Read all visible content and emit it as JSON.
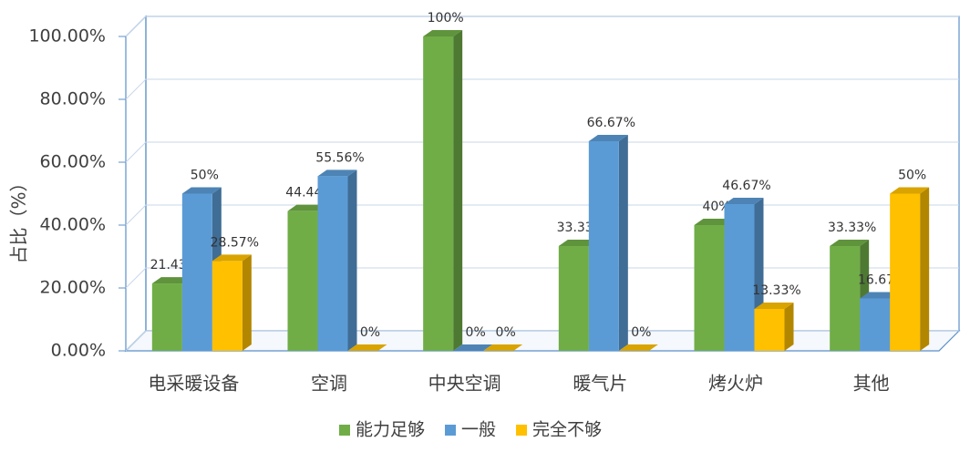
{
  "chart_data": {
    "type": "bar3d",
    "y_label": "占比（%）",
    "categories": [
      "电采暖设备",
      "空调",
      "中央空调",
      "暖气片",
      "烤火炉",
      "其他"
    ],
    "series": [
      {
        "name": "能力足够",
        "color": "#70ad47",
        "values": [
          21.43,
          44.44,
          100,
          33.33,
          40,
          33.33
        ],
        "value_labels": [
          "21.43%",
          "44.44%",
          "100%",
          "33.33%",
          "40%",
          "33.33%"
        ]
      },
      {
        "name": "一般",
        "color": "#5b9bd5",
        "values": [
          50,
          55.56,
          0,
          66.67,
          46.67,
          16.67
        ],
        "value_labels": [
          "50%",
          "55.56%",
          "0%",
          "66.67%",
          "46.67%",
          "16.67%"
        ]
      },
      {
        "name": "完全不够",
        "color": "#ffc000",
        "values": [
          28.57,
          0,
          0,
          0,
          13.33,
          50
        ],
        "value_labels": [
          "28.57%",
          "0%",
          "0%",
          "0%",
          "13.33%",
          "50%"
        ]
      }
    ],
    "ylim": [
      0,
      100
    ],
    "yticks": [
      {
        "value": 0,
        "label": "0.00%"
      },
      {
        "value": 20,
        "label": "20.00%"
      },
      {
        "value": 40,
        "label": "40.00%"
      },
      {
        "value": 60,
        "label": "60.00%"
      },
      {
        "value": 80,
        "label": "80.00%"
      },
      {
        "value": 100,
        "label": "100.00%"
      }
    ],
    "grid": true,
    "legend": "bottom"
  }
}
